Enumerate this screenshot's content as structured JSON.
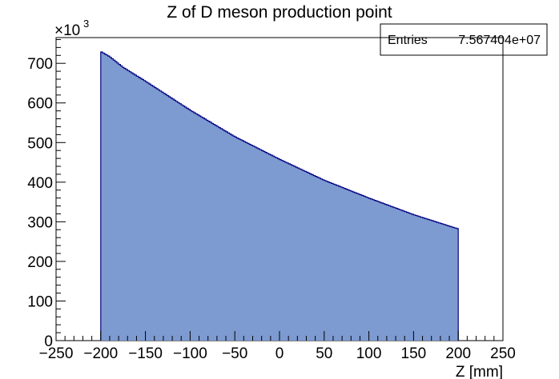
{
  "chart_data": {
    "type": "histogram",
    "title": "Z of D meson production point",
    "xlabel": "Z [mm]",
    "ylabel": "",
    "y_multiplier_label": "×10",
    "y_multiplier_exponent": "3",
    "xlim": [
      -250,
      250
    ],
    "ylim": [
      0,
      765
    ],
    "x_ticks": [
      -250,
      -200,
      -150,
      -100,
      -50,
      0,
      50,
      100,
      150,
      200,
      250
    ],
    "x_tick_labels": [
      "−250",
      "−200",
      "−150",
      "−100",
      "−50",
      "0",
      "50",
      "100",
      "150",
      "200",
      "250"
    ],
    "y_ticks": [
      0,
      100,
      200,
      300,
      400,
      500,
      600,
      700
    ],
    "y_tick_labels": [
      "0",
      "100",
      "200",
      "300",
      "400",
      "500",
      "600",
      "700"
    ],
    "x_range": [
      -200,
      200
    ],
    "bin_width": 2,
    "anchors": [
      {
        "z": -200,
        "y": 730
      },
      {
        "z": -190,
        "y": 717
      },
      {
        "z": -175,
        "y": 690
      },
      {
        "z": -150,
        "y": 655
      },
      {
        "z": -100,
        "y": 582
      },
      {
        "z": -50,
        "y": 515
      },
      {
        "z": 0,
        "y": 458
      },
      {
        "z": 50,
        "y": 405
      },
      {
        "z": 100,
        "y": 360
      },
      {
        "z": 150,
        "y": 318
      },
      {
        "z": 200,
        "y": 282
      }
    ],
    "fill_color": "#7d9bd1",
    "line_color": "#000080",
    "grid": false,
    "stats": {
      "label": "Entries",
      "value": "7.567404e+07"
    }
  }
}
